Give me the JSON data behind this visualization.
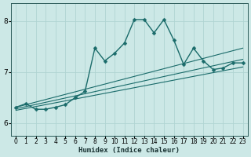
{
  "xlabel": "Humidex (Indice chaleur)",
  "background_color": "#cce8e6",
  "grid_color": "#b0d4d2",
  "line_color": "#1a6b6a",
  "xlim": [
    -0.5,
    23.5
  ],
  "ylim": [
    5.75,
    8.35
  ],
  "xticks": [
    0,
    1,
    2,
    3,
    4,
    5,
    6,
    7,
    8,
    9,
    10,
    11,
    12,
    13,
    14,
    15,
    16,
    17,
    18,
    19,
    20,
    21,
    22,
    23
  ],
  "yticks": [
    6,
    7,
    8
  ],
  "series": [
    {
      "x": [
        0,
        1,
        2,
        3,
        4,
        5,
        6,
        7,
        8,
        9,
        10,
        11,
        12,
        13,
        14,
        15,
        16,
        17,
        18,
        19,
        20,
        21,
        22,
        23
      ],
      "y": [
        6.31,
        6.38,
        6.27,
        6.27,
        6.31,
        6.36,
        6.5,
        6.62,
        7.47,
        7.22,
        7.37,
        7.57,
        8.03,
        8.03,
        7.77,
        8.03,
        7.63,
        7.15,
        7.47,
        7.22,
        7.05,
        7.08,
        7.18,
        7.18
      ],
      "marker": "D",
      "markersize": 2.5
    },
    {
      "x": [
        0,
        23
      ],
      "y": [
        6.31,
        7.47
      ],
      "marker": null
    },
    {
      "x": [
        0,
        23
      ],
      "y": [
        6.28,
        7.25
      ],
      "marker": null
    },
    {
      "x": [
        0,
        23
      ],
      "y": [
        6.25,
        7.1
      ],
      "marker": null
    }
  ]
}
